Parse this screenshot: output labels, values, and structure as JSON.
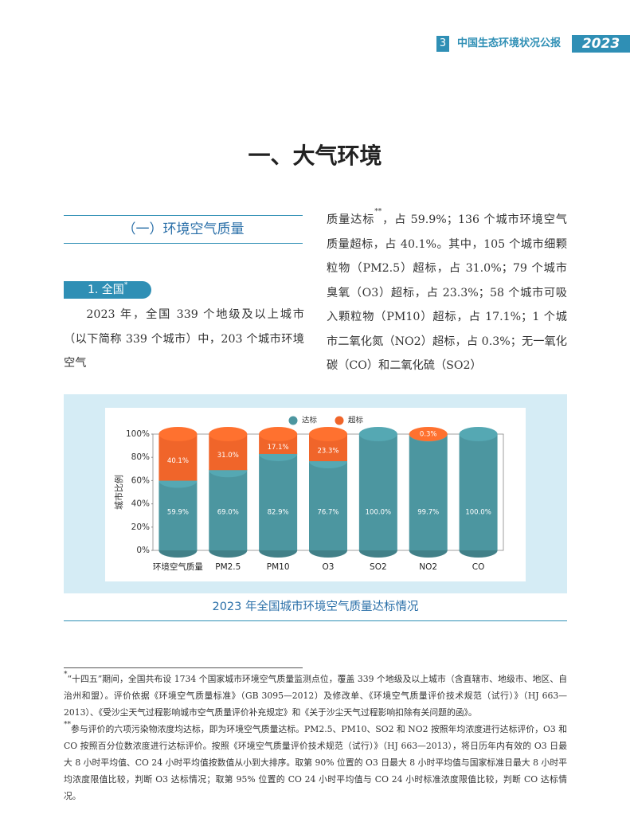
{
  "header": {
    "page": "3",
    "publication": "中国生态环境状况公报",
    "year": "2023"
  },
  "title": "一、大气环境",
  "section": "（一）环境空气质量",
  "subsection": {
    "label": "1. 全国",
    "marker": "*"
  },
  "paragraphs": [
    "2023 年，全国 339 个地级及以上城市（以下简称 339 个城市）中，203 个城市环境空气",
    {
      "before": "质量达标",
      "marker": "**",
      "after": "，占 59.9%；136 个城市环境空气质量超标，占 40.1%。其中，105 个城市细颗粒物（PM2.5）超标，占 31.0%；79 个城市臭氧（O3）超标，占 23.3%；58 个城市可吸入颗粒物（PM10）超标，占 17.1%；1 个城市二氧化氮（NO2）超标，占 0.3%；无一氧化碳（CO）和二氧化硫（SO2）"
    }
  ],
  "figure": {
    "caption": "2023 年全国城市环境空气质量达标情况"
  },
  "chart_data": {
    "type": "bar",
    "stacked": true,
    "legend": "top",
    "y_label": "城市比例",
    "categories": [
      "环境空气质量",
      "PM2.5",
      "PM10",
      "O3",
      "SO2",
      "NO2",
      "CO"
    ],
    "series": [
      {
        "name": "达标",
        "color": "#4c96a0",
        "values": [
          59.9,
          69.0,
          82.9,
          76.7,
          100.0,
          99.7,
          100.0
        ],
        "value_labels": [
          "59.9%",
          "69.0%",
          "82.9%",
          "76.7%",
          "100.0%",
          "99.7%",
          "100.0%"
        ]
      },
      {
        "name": "超标",
        "color": "#f0652a",
        "values": [
          40.1,
          31.0,
          17.1,
          23.3,
          0,
          0.3,
          0
        ],
        "value_labels": [
          "40.1%",
          "31.0%",
          "17.1%",
          "23.3%",
          null,
          "0.3%",
          null
        ]
      }
    ],
    "ylim": [
      0,
      100
    ],
    "yticks": [
      {
        "value": 0,
        "label": "0%"
      },
      {
        "value": 20,
        "label": "20%"
      },
      {
        "value": 40,
        "label": "40%"
      },
      {
        "value": 60,
        "label": "60%"
      },
      {
        "value": 80,
        "label": "80%"
      },
      {
        "value": 100,
        "label": "100%"
      }
    ]
  },
  "footnotes": [
    {
      "marker": "*",
      "text": "“十四五”期间，全国共布设 1734 个国家城市环境空气质量监测点位，覆盖 339 个地级及以上城市（含直辖市、地级市、地区、自治州和盟）。评价依据《环境空气质量标准》（GB 3095—2012）及修改单、《环境空气质量评价技术规范（试行）》（HJ 663—2013）、《受沙尘天气过程影响城市空气质量评价补充规定》和《关于沙尘天气过程影响扣除有关问题的函》。"
    },
    {
      "marker": "**",
      "text": "参与评价的六项污染物浓度均达标，即为环境空气质量达标。PM2.5、PM10、SO2 和 NO2 按照年均浓度进行达标评价，O3 和 CO 按照百分位数浓度进行达标评价。按照《环境空气质量评价技术规范（试行）》（HJ 663—2013），将日历年内有效的 O3 日最大 8 小时平均值、CO 24 小时平均值按数值从小到大排序。取第 90% 位置的 O3 日最大 8 小时平均值与国家标准日最大 8 小时平均浓度限值比较，判断 O3 达标情况；取第 95% 位置的 CO 24 小时平均值与 CO 24 小时标准浓度限值比较，判断 CO 达标情况。"
    }
  ]
}
